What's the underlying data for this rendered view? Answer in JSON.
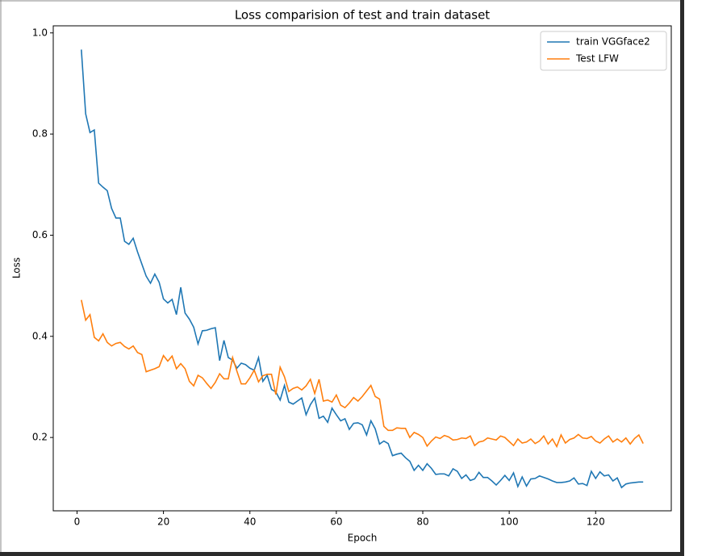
{
  "chart_data": {
    "type": "line",
    "title": "Loss comparision of test and train dataset",
    "x_label": "Epoch",
    "y_label": "Loss",
    "x": [
      1,
      2,
      3,
      4,
      5,
      6,
      7,
      8,
      9,
      10,
      11,
      12,
      13,
      14,
      15,
      16,
      17,
      18,
      19,
      20,
      21,
      22,
      23,
      24,
      25,
      26,
      27,
      28,
      29,
      30,
      31,
      32,
      33,
      34,
      35,
      36,
      37,
      38,
      39,
      40,
      41,
      42,
      43,
      44,
      45,
      46,
      47,
      48,
      49,
      50,
      51,
      52,
      53,
      54,
      55,
      56,
      57,
      58,
      59,
      60,
      61,
      62,
      63,
      64,
      65,
      66,
      67,
      68,
      69,
      70,
      71,
      72,
      73,
      74,
      75,
      76,
      77,
      78,
      79,
      80,
      81,
      82,
      83,
      84,
      85,
      86,
      87,
      88,
      89,
      90,
      91,
      92,
      93,
      94,
      95,
      96,
      97,
      98,
      99,
      100,
      101,
      102,
      103,
      104,
      105,
      106,
      107,
      108,
      109,
      110,
      111,
      112,
      113,
      114,
      115,
      116,
      117,
      118,
      119,
      120,
      121,
      122,
      123,
      124,
      125,
      126,
      127,
      128,
      129,
      130,
      131
    ],
    "series": [
      {
        "name": "train VGGface2",
        "color": "#1f77b4",
        "values": [
          0.967,
          0.84,
          0.803,
          0.808,
          0.703,
          0.695,
          0.688,
          0.653,
          0.634,
          0.634,
          0.588,
          0.582,
          0.594,
          0.567,
          0.543,
          0.519,
          0.505,
          0.523,
          0.507,
          0.474,
          0.466,
          0.473,
          0.443,
          0.497,
          0.446,
          0.434,
          0.418,
          0.385,
          0.411,
          0.412,
          0.415,
          0.417,
          0.352,
          0.392,
          0.358,
          0.353,
          0.337,
          0.347,
          0.344,
          0.337,
          0.333,
          0.358,
          0.311,
          0.323,
          0.295,
          0.29,
          0.274,
          0.303,
          0.27,
          0.266,
          0.272,
          0.278,
          0.245,
          0.265,
          0.278,
          0.238,
          0.242,
          0.23,
          0.258,
          0.245,
          0.233,
          0.237,
          0.216,
          0.228,
          0.229,
          0.225,
          0.205,
          0.233,
          0.217,
          0.187,
          0.193,
          0.188,
          0.164,
          0.167,
          0.169,
          0.16,
          0.153,
          0.135,
          0.145,
          0.135,
          0.148,
          0.139,
          0.127,
          0.128,
          0.128,
          0.124,
          0.138,
          0.133,
          0.119,
          0.126,
          0.115,
          0.118,
          0.131,
          0.121,
          0.121,
          0.114,
          0.106,
          0.115,
          0.125,
          0.115,
          0.13,
          0.103,
          0.122,
          0.104,
          0.118,
          0.119,
          0.124,
          0.121,
          0.118,
          0.114,
          0.111,
          0.111,
          0.112,
          0.114,
          0.12,
          0.108,
          0.109,
          0.105,
          0.133,
          0.119,
          0.132,
          0.124,
          0.126,
          0.114,
          0.12,
          0.101,
          0.108,
          0.11,
          0.111,
          0.112,
          0.112
        ]
      },
      {
        "name": "Test LFW",
        "color": "#ff7f0e",
        "values": [
          0.472,
          0.432,
          0.443,
          0.398,
          0.391,
          0.405,
          0.388,
          0.381,
          0.386,
          0.388,
          0.38,
          0.375,
          0.381,
          0.368,
          0.364,
          0.33,
          0.333,
          0.336,
          0.34,
          0.362,
          0.351,
          0.361,
          0.336,
          0.346,
          0.336,
          0.311,
          0.302,
          0.323,
          0.318,
          0.307,
          0.297,
          0.309,
          0.326,
          0.316,
          0.316,
          0.358,
          0.331,
          0.306,
          0.306,
          0.318,
          0.333,
          0.31,
          0.322,
          0.325,
          0.325,
          0.285,
          0.339,
          0.32,
          0.291,
          0.297,
          0.3,
          0.294,
          0.302,
          0.315,
          0.287,
          0.315,
          0.272,
          0.274,
          0.27,
          0.284,
          0.264,
          0.259,
          0.268,
          0.279,
          0.272,
          0.281,
          0.292,
          0.303,
          0.281,
          0.276,
          0.222,
          0.214,
          0.214,
          0.219,
          0.218,
          0.218,
          0.2,
          0.21,
          0.206,
          0.2,
          0.183,
          0.193,
          0.201,
          0.198,
          0.204,
          0.201,
          0.195,
          0.196,
          0.199,
          0.198,
          0.203,
          0.184,
          0.191,
          0.193,
          0.199,
          0.197,
          0.195,
          0.203,
          0.2,
          0.192,
          0.184,
          0.197,
          0.189,
          0.191,
          0.197,
          0.188,
          0.193,
          0.203,
          0.187,
          0.197,
          0.182,
          0.205,
          0.189,
          0.196,
          0.199,
          0.206,
          0.199,
          0.198,
          0.202,
          0.193,
          0.189,
          0.197,
          0.203,
          0.191,
          0.197,
          0.191,
          0.199,
          0.187,
          0.198,
          0.205,
          0.188
        ]
      }
    ],
    "xlim": [
      -5.5,
      137.5
    ],
    "ylim": [
      0.055,
      1.014
    ],
    "xticks": [
      0,
      20,
      40,
      60,
      80,
      100,
      120
    ],
    "yticks": [
      0.2,
      0.4,
      0.6,
      0.8,
      {
        "value": 1,
        "label": "1.0"
      }
    ],
    "legend": "upper right"
  }
}
